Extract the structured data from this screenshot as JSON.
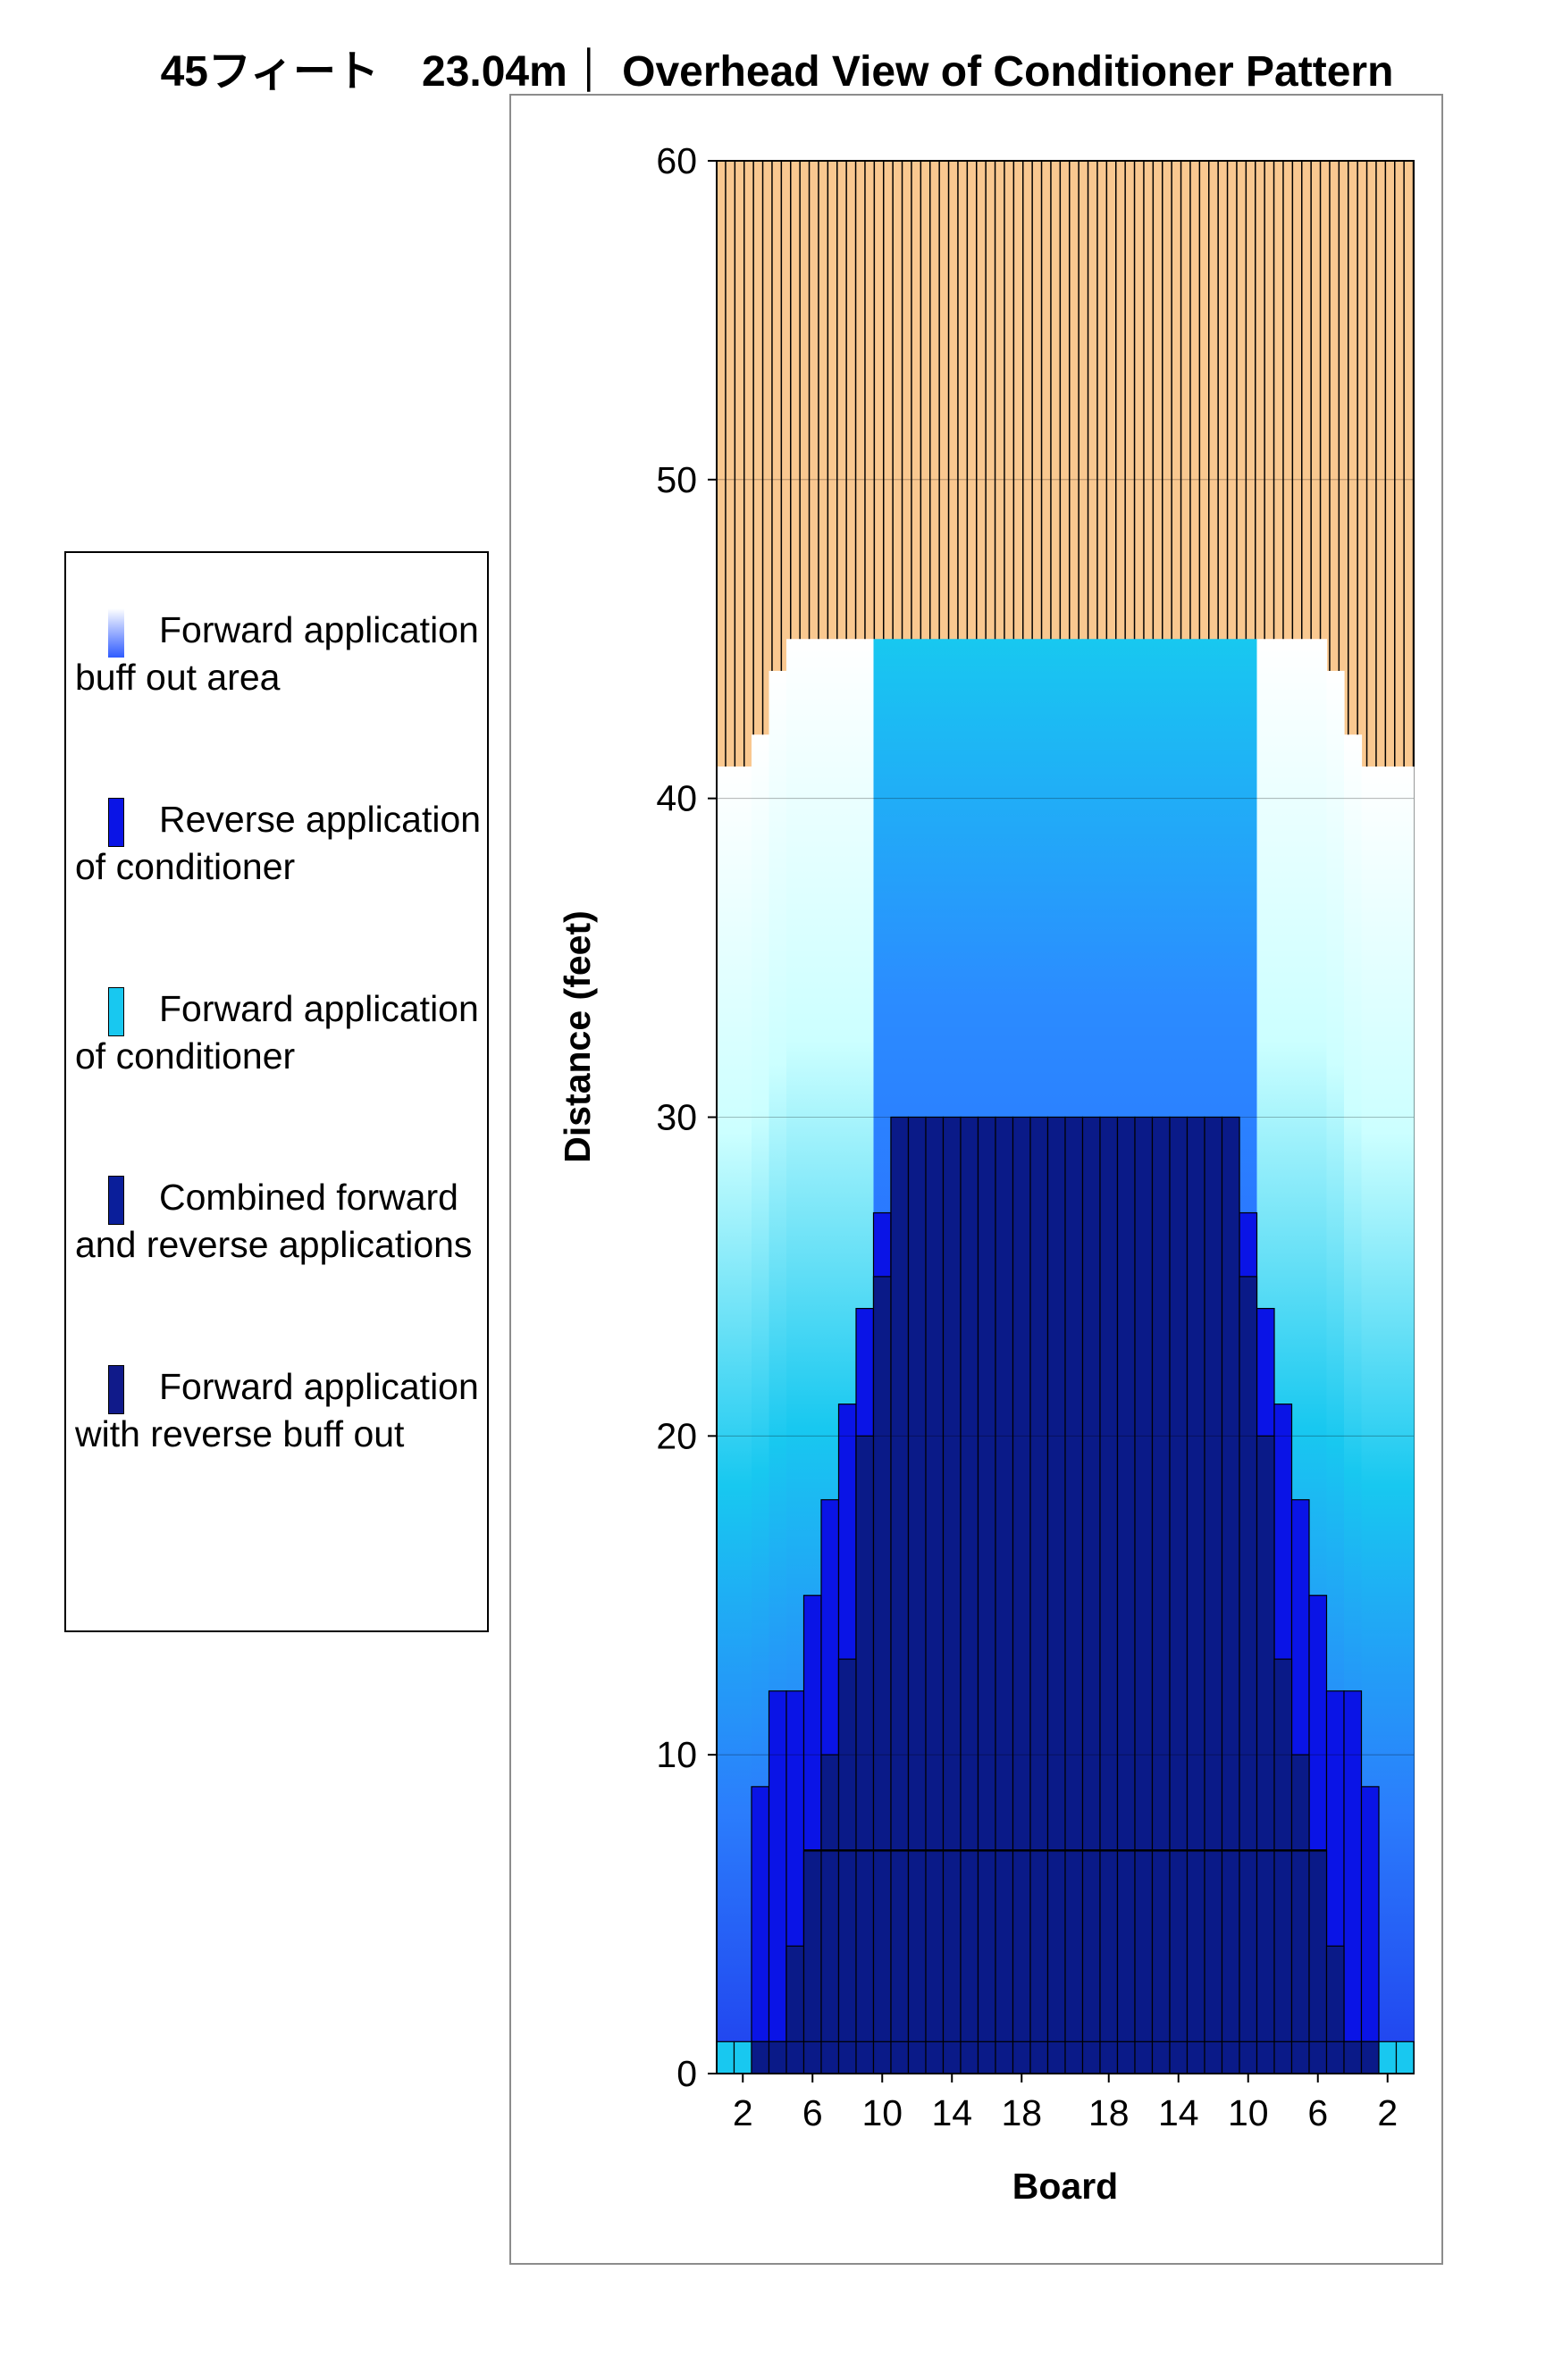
{
  "title": "45フィート　23.04m｜ Overhead View of Conditioner Pattern",
  "legend": [
    {
      "label": "Forward application buff out area",
      "color": "#ccccff",
      "gradient": true
    },
    {
      "label": "Reverse application of conditioner",
      "color": "#0a14e6"
    },
    {
      "label": "Forward application of conditioner",
      "color": "#18c8f0"
    },
    {
      "label": "Combined forward and reverse applications",
      "color": "#0a1e9a"
    },
    {
      "label": "Forward application with reverse buff out",
      "color": "#101a8a"
    }
  ],
  "colors": {
    "background_pattern": "#f9c890",
    "forward_light": "#ffffff",
    "forward_cyan": "#18c8f0",
    "forward_blue": "#2050f0",
    "reverse": "#0a14e6",
    "combined": "#0a1a88",
    "bar_outline": "#000000"
  },
  "chart_data": {
    "type": "bar",
    "xlabel": "Board",
    "ylabel": "Distance (feet)",
    "ylim": [
      0,
      60
    ],
    "yticks": [
      0,
      10,
      20,
      30,
      40,
      50,
      60
    ],
    "grid": "horizontal",
    "boards": [
      1,
      2,
      3,
      4,
      5,
      6,
      7,
      8,
      9,
      10,
      11,
      12,
      13,
      14,
      15,
      16,
      17,
      18,
      19,
      20,
      20,
      19,
      18,
      17,
      16,
      15,
      14,
      13,
      12,
      11,
      10,
      9,
      8,
      7,
      6,
      5,
      4,
      3,
      2,
      1
    ],
    "xtick_labels": [
      "2",
      "6",
      "10",
      "14",
      "18",
      "18",
      "14",
      "10",
      "6",
      "2"
    ],
    "xtick_positions_board_index": [
      2,
      6,
      10,
      14,
      18,
      23,
      27,
      31,
      35,
      39
    ],
    "series": [
      {
        "name": "Forward application buff out area",
        "values": [
          41,
          41,
          42,
          44,
          45,
          45,
          45,
          45,
          45,
          45,
          45,
          45,
          45,
          45,
          45,
          45,
          45,
          45,
          45,
          45,
          45,
          45,
          45,
          45,
          45,
          45,
          45,
          45,
          45,
          45,
          45,
          45,
          45,
          45,
          45,
          44,
          42,
          41,
          41,
          41
        ]
      },
      {
        "name": "Forward application of conditioner",
        "values": [
          1,
          1,
          1,
          1,
          1,
          1,
          1,
          1,
          1,
          1,
          1,
          1,
          1,
          1,
          1,
          1,
          1,
          1,
          1,
          1,
          1,
          1,
          1,
          1,
          1,
          1,
          1,
          1,
          1,
          1,
          1,
          1,
          1,
          1,
          1,
          1,
          1,
          1,
          1,
          1
        ]
      },
      {
        "name": "Reverse application of conditioner",
        "values": [
          0,
          0,
          9,
          12,
          12,
          15,
          18,
          21,
          24,
          27,
          30,
          30,
          30,
          30,
          30,
          30,
          30,
          30,
          30,
          30,
          30,
          30,
          30,
          30,
          30,
          30,
          30,
          30,
          30,
          30,
          27,
          24,
          21,
          18,
          15,
          12,
          12,
          9,
          0,
          0
        ]
      },
      {
        "name": "Combined forward and reverse applications",
        "values": [
          0,
          0,
          1,
          1,
          4,
          7,
          10,
          13,
          20,
          25,
          30,
          30,
          30,
          30,
          30,
          30,
          30,
          30,
          30,
          30,
          30,
          30,
          30,
          30,
          30,
          30,
          30,
          30,
          30,
          30,
          25,
          20,
          13,
          10,
          7,
          4,
          1,
          1,
          0,
          0
        ]
      },
      {
        "name": "Forward application with reverse buff out",
        "values": [
          0,
          0,
          0,
          0,
          0,
          7,
          7,
          7,
          7,
          7,
          7,
          7,
          7,
          7,
          7,
          7,
          7,
          7,
          7,
          7,
          7,
          7,
          7,
          7,
          7,
          7,
          7,
          7,
          7,
          7,
          7,
          7,
          7,
          7,
          7,
          0,
          0,
          0,
          0,
          0
        ]
      }
    ],
    "ideal_band_top": 30,
    "forward_application_top": 45
  }
}
